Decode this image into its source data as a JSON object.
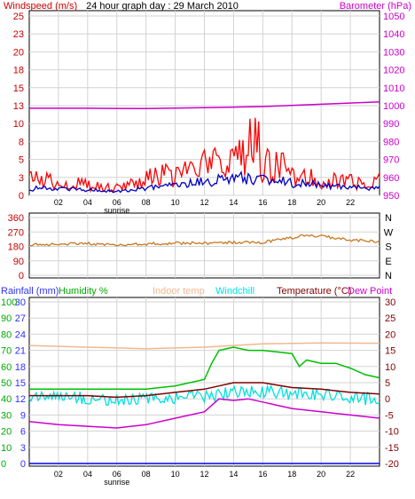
{
  "colors": {
    "grid": "#d3d3d3",
    "axis": "#000000",
    "wind_gust": "#ff0000",
    "wind_avg": "#0000c0",
    "barometer": "#cc00cc",
    "wind_dir": "#c87820",
    "rain": "#0000ff",
    "humidity": "#00c000",
    "indoor": "#f0b890",
    "windchill": "#00e0e0",
    "temperature": "#800000",
    "dewpoint": "#cc00cc",
    "label_red": "#cc0000",
    "label_blue": "#3030ff",
    "label_green": "#00aa00"
  },
  "chart_data": [
    {
      "type": "line",
      "title": "24 hour graph day : 29 March 2010",
      "left_axis_label": "Windspeed (m/s)",
      "right_axis_label": "Barometer (hPa)",
      "x_ticks": [
        "02",
        "04",
        "06",
        "08",
        "10",
        "12",
        "14",
        "16",
        "18",
        "20",
        "22"
      ],
      "x_annotation": "sunrise",
      "left_ticks": [
        "0",
        "3",
        "5",
        "8",
        "10",
        "13",
        "15",
        "18",
        "20",
        "23",
        "25"
      ],
      "right_ticks": [
        "950",
        "960",
        "970",
        "980",
        "990",
        "1000",
        "1010",
        "1020",
        "1030",
        "1040",
        "1050"
      ],
      "ylim_left": [
        0,
        25
      ],
      "ylim_right": [
        948,
        1052
      ],
      "xlim": [
        0,
        24
      ],
      "series": [
        {
          "role": "gust",
          "x": [
            0,
            1,
            2,
            3,
            4,
            5,
            6,
            7,
            8,
            9,
            10,
            11,
            12,
            13,
            14,
            15,
            15.5,
            16,
            17,
            18,
            19,
            20,
            21,
            22,
            23,
            24
          ],
          "y": [
            2.5,
            2.5,
            2,
            1.8,
            1.8,
            1.2,
            1.5,
            1.8,
            2.5,
            3,
            3,
            3.5,
            4.5,
            5,
            5.5,
            7,
            9.5,
            4.5,
            4.5,
            3.5,
            3,
            2.5,
            2.5,
            2,
            1.8,
            2.5
          ]
        },
        {
          "role": "average",
          "x": [
            0,
            2,
            4,
            6,
            8,
            10,
            12,
            14,
            16,
            18,
            20,
            22,
            24
          ],
          "y": [
            1,
            1,
            0.8,
            0.6,
            1,
            1.5,
            2,
            2.5,
            2.5,
            1.8,
            1.5,
            1.2,
            1
          ]
        },
        {
          "role": "barometer",
          "x": [
            0,
            4,
            8,
            12,
            16,
            20,
            24
          ],
          "y": [
            998.5,
            998.5,
            998.3,
            998.8,
            999.5,
            1000.8,
            1002.2
          ]
        }
      ]
    },
    {
      "type": "line",
      "left_ticks": [
        "0",
        "90",
        "180",
        "270",
        "360"
      ],
      "right_ticks": [
        "N",
        "W",
        "S",
        "E",
        "N"
      ],
      "ylim": [
        0,
        360
      ],
      "xlim": [
        0,
        24
      ],
      "series": [
        {
          "role": "wind_direction",
          "x": [
            0,
            2,
            4,
            6,
            8,
            10,
            12,
            14,
            16,
            17,
            18,
            19,
            20,
            21,
            22,
            23,
            24
          ],
          "y": [
            190,
            195,
            200,
            185,
            195,
            200,
            200,
            205,
            205,
            220,
            235,
            250,
            245,
            230,
            220,
            215,
            210
          ]
        }
      ]
    },
    {
      "type": "line",
      "x_ticks": [
        "02",
        "04",
        "06",
        "08",
        "10",
        "12",
        "14",
        "16",
        "18",
        "20",
        "22"
      ],
      "x_annotation": "sunrise",
      "xlim": [
        0,
        24
      ],
      "legend": [
        "Rainfall (mm)",
        "Humidity %",
        "Indoor temp",
        "Windchill",
        "Temperature (°C)",
        "Dew Point"
      ],
      "humidity_ticks": [
        "0",
        "10",
        "20",
        "30",
        "40",
        "50",
        "60",
        "70",
        "80",
        "90",
        "100"
      ],
      "rain_ticks": [
        "0",
        "3",
        "6",
        "9",
        "12",
        "15",
        "18",
        "21",
        "24",
        "27",
        "30"
      ],
      "temp_ticks": [
        "30",
        "25",
        "20",
        "15",
        "10",
        "5",
        "0",
        "-5",
        "-10",
        "-15",
        "-20"
      ],
      "ylim_humidity": [
        0,
        100
      ],
      "ylim_temperature": [
        -20,
        30
      ],
      "series": [
        {
          "name": "Rainfall (mm)",
          "x": [
            0,
            24
          ],
          "y": [
            0,
            0
          ]
        },
        {
          "name": "Humidity %",
          "x": [
            0,
            3,
            6,
            8,
            10,
            12,
            12.5,
            13,
            14,
            15,
            16,
            17,
            18,
            18.5,
            19,
            20,
            21,
            22,
            23,
            24
          ],
          "y": [
            46,
            46,
            46,
            46,
            48,
            52,
            62,
            70,
            72,
            70,
            70,
            69,
            68,
            60,
            64,
            62,
            62,
            59,
            55,
            53
          ]
        },
        {
          "name": "Indoor temp",
          "x": [
            0,
            4,
            8,
            12,
            16,
            20,
            24
          ],
          "y": [
            16.5,
            16,
            15.5,
            16,
            17,
            17.3,
            17.2
          ]
        },
        {
          "name": "Windchill",
          "x": [
            0,
            2,
            4,
            6,
            8,
            10,
            12,
            14,
            16,
            18,
            20,
            22,
            24
          ],
          "y": [
            1,
            1,
            0,
            -0.5,
            0,
            0.5,
            0.8,
            2,
            2.5,
            1.5,
            1.5,
            0,
            0
          ]
        },
        {
          "name": "Temperature (°C)",
          "x": [
            0,
            2,
            4,
            6,
            8,
            10,
            12,
            14,
            16,
            18,
            20,
            22,
            24
          ],
          "y": [
            1,
            1,
            1,
            0.5,
            1,
            2,
            3,
            5,
            5,
            3.5,
            3,
            2,
            1.5
          ]
        },
        {
          "name": "Dew Point",
          "x": [
            0,
            2,
            4,
            6,
            8,
            10,
            12,
            13,
            14,
            15,
            16,
            17,
            18,
            20,
            22,
            24
          ],
          "y": [
            -7,
            -8,
            -8.5,
            -9,
            -8,
            -6,
            -4,
            0,
            -0.5,
            0,
            -1,
            -2,
            -3,
            -4,
            -5,
            -6
          ]
        }
      ]
    }
  ]
}
